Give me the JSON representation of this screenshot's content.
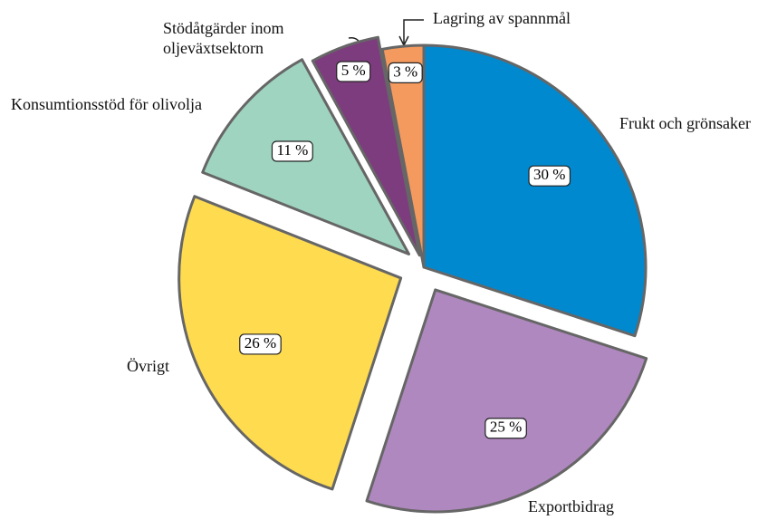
{
  "chart_data": {
    "type": "pie",
    "categories": [
      "Frukt och grönsaker",
      "Exportbidrag",
      "Övrigt",
      "Konsumtionsstöd för olivolja",
      "Stödåtgärder inom oljeväxtsektorn",
      "Lagring av spannmål"
    ],
    "values": [
      30,
      25,
      26,
      11,
      5,
      3
    ],
    "value_labels": [
      "30 %",
      "25 %",
      "26 %",
      "11 %",
      "5 %",
      "3 %"
    ],
    "colors": [
      "#0089cf",
      "#b088c0",
      "#fedb4f",
      "#9fd5c0",
      "#7d3c7e",
      "#f59a5f"
    ]
  }
}
